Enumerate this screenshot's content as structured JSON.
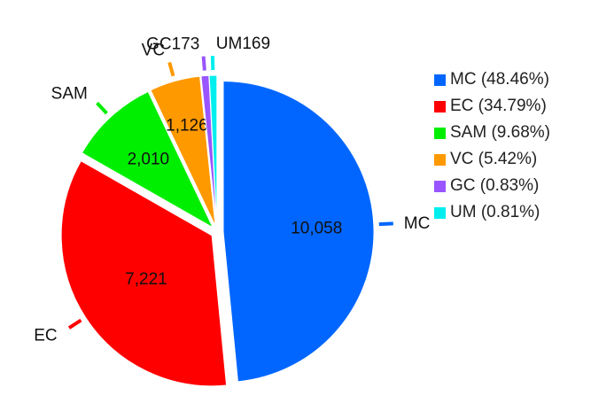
{
  "chart_data": {
    "type": "pie",
    "slices": [
      {
        "label": "MC",
        "value": 10058,
        "value_text": "10,058",
        "color": "#0066ff",
        "legend": "MC (48.46%)"
      },
      {
        "label": "EC",
        "value": 7221,
        "value_text": "7,221",
        "color": "#ff0000",
        "legend": "EC (34.79%)"
      },
      {
        "label": "SAM",
        "value": 2010,
        "value_text": "2,010",
        "color": "#00ee00",
        "legend": "SAM (9.68%)"
      },
      {
        "label": "VC",
        "value": 1126,
        "value_text": "1,126",
        "color": "#ff9900",
        "legend": "VC (5.42%)"
      },
      {
        "label": "GC",
        "value": 173,
        "value_text": "173",
        "color": "#9955ff",
        "legend": "GC (0.83%)"
      },
      {
        "label": "UM",
        "value": 169,
        "value_text": "169",
        "color": "#00eeee",
        "legend": "UM (0.81%)"
      }
    ],
    "legend_position": "right"
  }
}
